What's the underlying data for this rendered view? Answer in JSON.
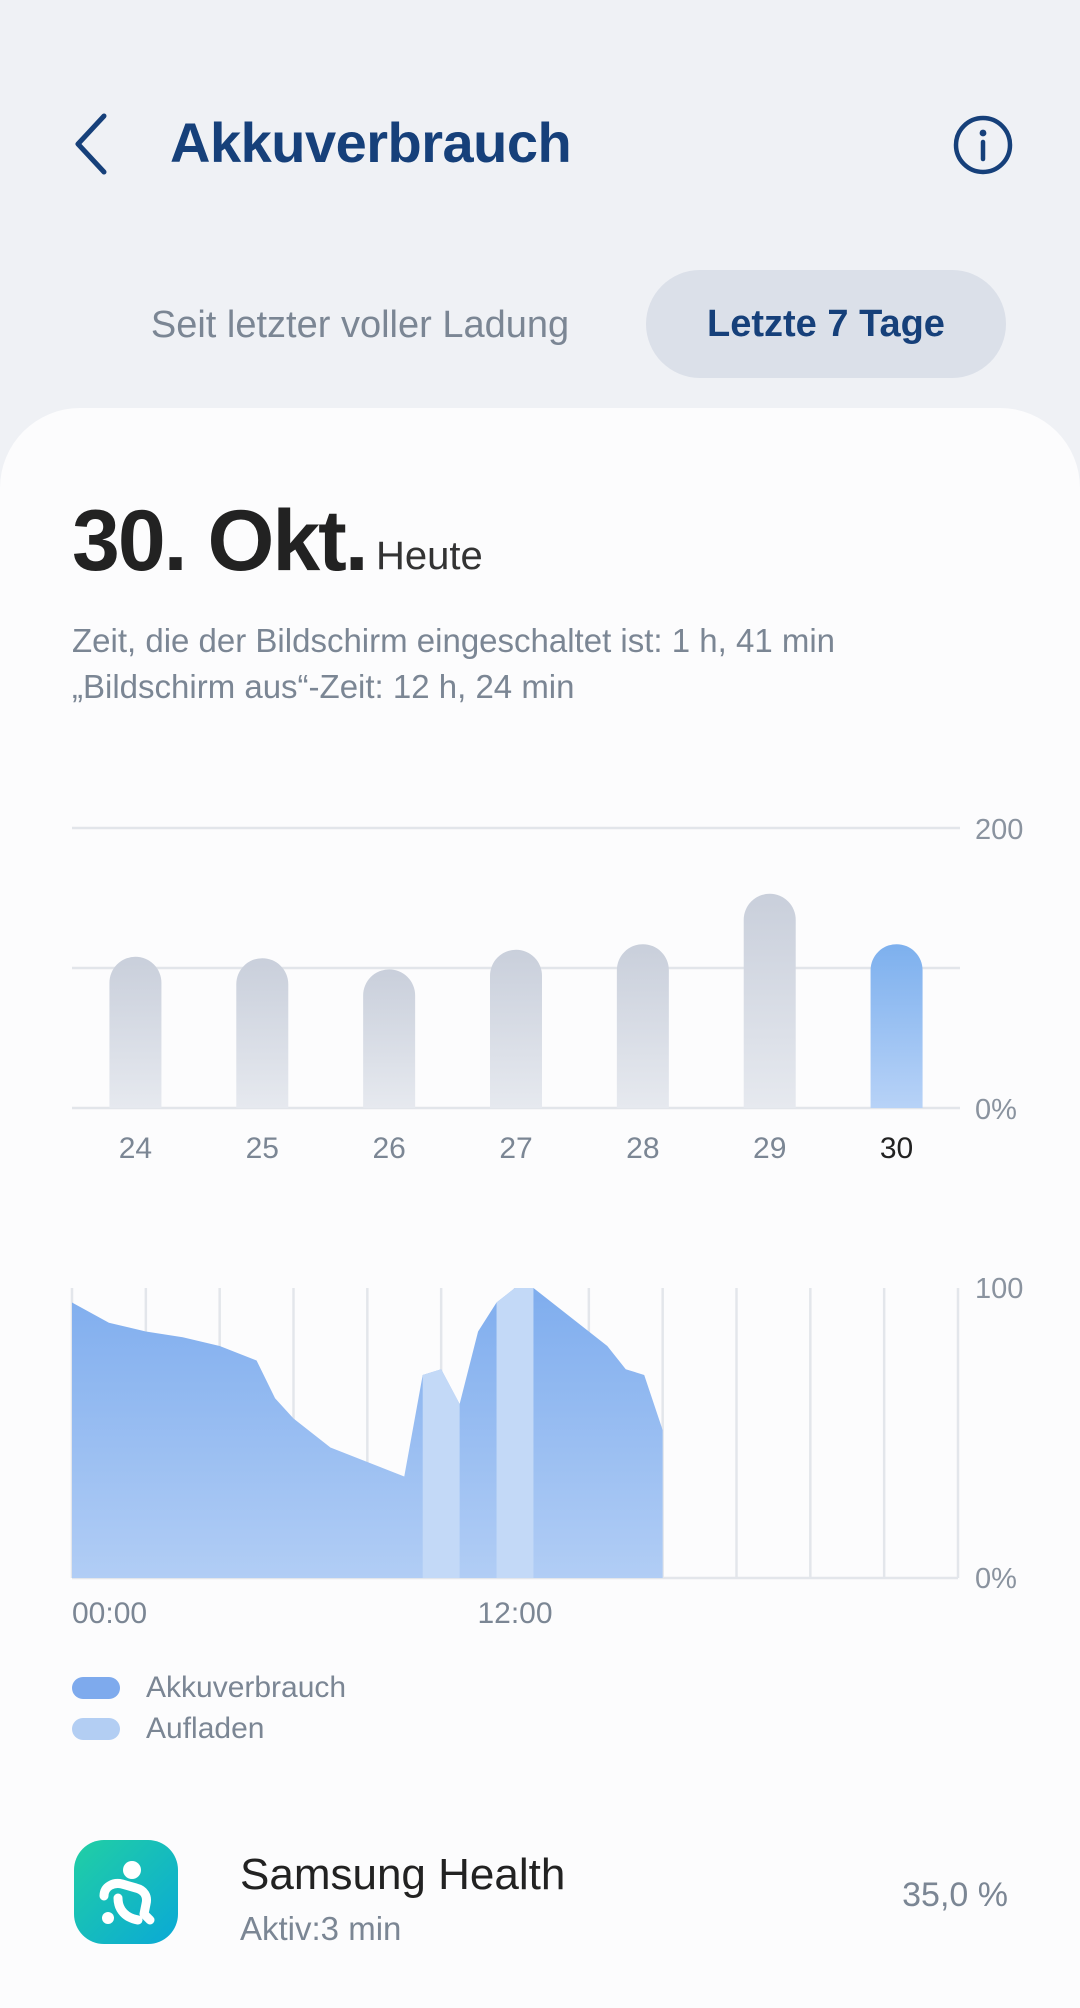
{
  "header": {
    "title": "Akkuverbrauch",
    "back_icon": "chevron-left-icon",
    "info_icon": "info-icon"
  },
  "segments": [
    {
      "label": "Seit letzter voller Ladung",
      "selected": false
    },
    {
      "label": "Letzte 7 Tage",
      "selected": true
    }
  ],
  "summary": {
    "date": "30. Okt.",
    "date_suffix": "Heute",
    "screen_on": "Zeit, die der Bildschirm eingeschaltet ist: 1 h, 41 min",
    "screen_off": "„Bildschirm aus“-Zeit: 12 h, 24 min"
  },
  "chart_data": [
    {
      "type": "bar",
      "categories": [
        "24",
        "25",
        "26",
        "27",
        "28",
        "29",
        "30"
      ],
      "values": [
        108,
        107,
        99,
        113,
        117,
        153,
        117
      ],
      "ylim": [
        0,
        200
      ],
      "y_tick_labels": [
        "200",
        "0%"
      ],
      "selected_category": "30",
      "colors": {
        "bar": "#cdd3de",
        "selected": "#86b2ee"
      }
    },
    {
      "type": "area",
      "x": [
        0,
        1,
        2,
        3,
        4,
        5,
        5.5,
        6,
        7,
        8,
        9,
        9.5,
        10,
        10.5,
        11,
        11.5,
        12,
        12.5,
        13,
        14,
        14.5,
        15,
        15.5,
        16
      ],
      "values": [
        95,
        88,
        85,
        83,
        80,
        75,
        62,
        55,
        45,
        40,
        35,
        70,
        72,
        60,
        85,
        95,
        100,
        100,
        95,
        85,
        80,
        72,
        70,
        51
      ],
      "x_tick_labels": [
        "00:00",
        "12:00"
      ],
      "ylim": [
        0,
        100
      ],
      "y_tick_labels": [
        "100",
        "0%"
      ],
      "xlim": [
        0,
        24
      ],
      "charging_ranges": [
        [
          9.5,
          10.5
        ],
        [
          11.5,
          12.5
        ]
      ],
      "colors": {
        "usage": "#88b3ee",
        "charging": "#c3d9f7"
      }
    }
  ],
  "legend": [
    {
      "label": "Akkuverbrauch",
      "color": "#7eaaed"
    },
    {
      "label": "Aufladen",
      "color": "#b3cef3"
    }
  ],
  "apps": [
    {
      "name": "Samsung Health",
      "active": "Aktiv:3 min",
      "percent": "35,0 %",
      "icon": "samsung-health-icon"
    }
  ]
}
